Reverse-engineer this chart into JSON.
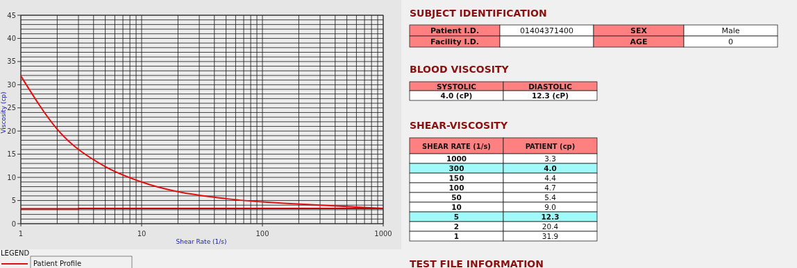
{
  "chart_data": [
    {
      "type": "line",
      "xlabel": "Shear Rate (1/s)",
      "ylabel": "Viscosity (cp)",
      "legend_title": "LEGEND",
      "log": "x",
      "grid": true,
      "legend": "bottom left",
      "line_style": "solid",
      "marker": "none",
      "xlim": [
        1,
        1000
      ],
      "xticks": [
        1,
        {
          "value": 2,
          "label": null
        },
        {
          "value": 3,
          "label": null
        },
        {
          "value": 4,
          "label": null
        },
        {
          "value": 5,
          "label": null
        },
        {
          "value": 6,
          "label": null
        },
        {
          "value": 7,
          "label": null
        },
        {
          "value": 8,
          "label": null
        },
        {
          "value": 9,
          "label": null
        },
        10,
        {
          "value": 20,
          "label": null
        },
        {
          "value": 30,
          "label": null
        },
        {
          "value": 40,
          "label": null
        },
        {
          "value": 50,
          "label": null
        },
        {
          "value": 60,
          "label": null
        },
        {
          "value": 70,
          "label": null
        },
        {
          "value": 80,
          "label": null
        },
        {
          "value": 90,
          "label": null
        },
        100,
        {
          "value": 200,
          "label": null
        },
        {
          "value": 300,
          "label": null
        },
        {
          "value": 400,
          "label": null
        },
        {
          "value": 500,
          "label": null
        },
        {
          "value": 600,
          "label": null
        },
        {
          "value": 700,
          "label": null
        },
        {
          "value": 800,
          "label": null
        },
        {
          "value": 900,
          "label": null
        },
        1000
      ],
      "ylim": [
        0,
        45
      ],
      "yticks": [
        0,
        {
          "value": 1,
          "label": null
        },
        {
          "value": 2,
          "label": null
        },
        {
          "value": 3,
          "label": null
        },
        {
          "value": 4,
          "label": null
        },
        5,
        {
          "value": 6,
          "label": null
        },
        {
          "value": 7,
          "label": null
        },
        {
          "value": 8,
          "label": null
        },
        {
          "value": 9,
          "label": null
        },
        10,
        {
          "value": 11,
          "label": null
        },
        {
          "value": 12,
          "label": null
        },
        {
          "value": 13,
          "label": null
        },
        {
          "value": 14,
          "label": null
        },
        15,
        {
          "value": 16,
          "label": null
        },
        {
          "value": 17,
          "label": null
        },
        {
          "value": 18,
          "label": null
        },
        {
          "value": 19,
          "label": null
        },
        20,
        {
          "value": 21,
          "label": null
        },
        {
          "value": 22,
          "label": null
        },
        {
          "value": 23,
          "label": null
        },
        {
          "value": 24,
          "label": null
        },
        25,
        {
          "value": 26,
          "label": null
        },
        {
          "value": 27,
          "label": null
        },
        {
          "value": 28,
          "label": null
        },
        {
          "value": 29,
          "label": null
        },
        30,
        {
          "value": 31,
          "label": null
        },
        {
          "value": 32,
          "label": null
        },
        {
          "value": 33,
          "label": null
        },
        {
          "value": 34,
          "label": null
        },
        35,
        {
          "value": 36,
          "label": null
        },
        {
          "value": 37,
          "label": null
        },
        {
          "value": 38,
          "label": null
        },
        {
          "value": 39,
          "label": null
        },
        40,
        {
          "value": 41,
          "label": null
        },
        {
          "value": 42,
          "label": null
        },
        {
          "value": 43,
          "label": null
        },
        {
          "value": 44,
          "label": null
        },
        45
      ],
      "series": [
        {
          "name": "Patient Profile",
          "color": "#e01010",
          "x": [
            1,
            2,
            5,
            10,
            50,
            100,
            150,
            300,
            1000
          ],
          "values": [
            31.9,
            20.4,
            12.3,
            9.0,
            5.4,
            4.7,
            4.4,
            4.0,
            3.3
          ]
        },
        {
          "type": "step",
          "color": "#c00000",
          "x": [
            1,
            3,
            1000
          ],
          "values": [
            3.2,
            3.3,
            3.3
          ]
        }
      ]
    },
    {
      "type": "other",
      "annotations": [
        "SUBJECT IDENTIFICATION",
        "Patient I.D.",
        "01404371400",
        "SEX",
        "Male",
        "Facility I.D.",
        "AGE",
        "0",
        "BLOOD VISCOSITY",
        "SYSTOLIC",
        "DIASTOLIC",
        "4.0 (cP)",
        "12.3 (cP)",
        "SHEAR-VISCOSITY",
        "SHEAR RATE (1/s)",
        "PATIENT (cp)",
        "1000",
        "3.3",
        "300",
        "4.0",
        "150",
        "4.4",
        "100",
        "4.7",
        "50",
        "5.4",
        "10",
        "9.0",
        "5",
        "12.3",
        "2",
        "20.4",
        "1",
        "31.9",
        "TEST FILE INFORMATION"
      ]
    }
  ]
}
